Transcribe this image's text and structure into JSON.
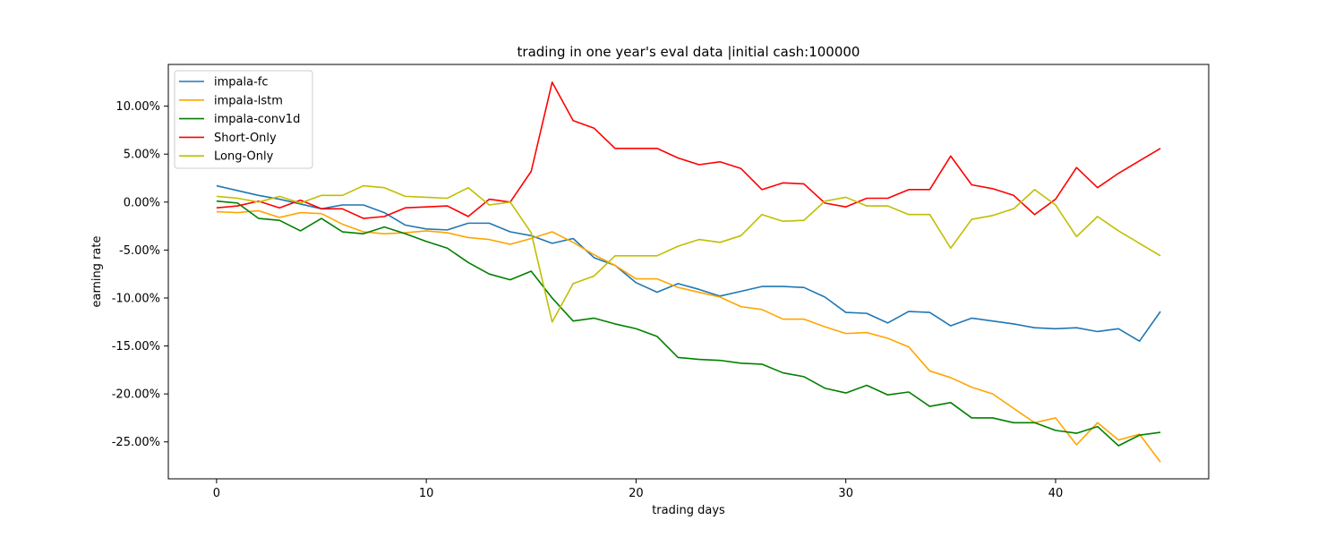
{
  "chart_data": {
    "type": "line",
    "title": "trading in one year's eval data |initial cash:100000",
    "xlabel": "trading days",
    "ylabel": "earning rate",
    "xlim": [
      -2.3,
      47.3
    ],
    "ylim": [
      -0.2885,
      0.1435
    ],
    "x_ticks": [
      0,
      10,
      20,
      30,
      40
    ],
    "x_tick_labels": [
      "0",
      "10",
      "20",
      "30",
      "40"
    ],
    "y_ticks": [
      -0.25,
      -0.2,
      -0.15,
      -0.1,
      -0.05,
      0.0,
      0.05,
      0.1
    ],
    "y_tick_labels": [
      "-25.00%",
      "-20.00%",
      "-15.00%",
      "-10.00%",
      "-5.00%",
      "0.00%",
      "5.00%",
      "10.00%"
    ],
    "grid": false,
    "legend_position": "upper-left",
    "x": [
      0,
      1,
      2,
      3,
      4,
      5,
      6,
      7,
      8,
      9,
      10,
      11,
      12,
      13,
      14,
      15,
      16,
      17,
      18,
      19,
      20,
      21,
      22,
      23,
      24,
      25,
      26,
      27,
      28,
      29,
      30,
      31,
      32,
      33,
      34,
      35,
      36,
      37,
      38,
      39,
      40,
      41,
      42,
      43,
      44,
      45
    ],
    "series": [
      {
        "name": "impala-fc",
        "color": "#1f77b4",
        "values": [
          0.017,
          0.012,
          0.007,
          0.003,
          -0.002,
          -0.007,
          -0.003,
          -0.003,
          -0.011,
          -0.024,
          -0.028,
          -0.029,
          -0.022,
          -0.022,
          -0.031,
          -0.035,
          -0.043,
          -0.038,
          -0.058,
          -0.066,
          -0.084,
          -0.094,
          -0.085,
          -0.091,
          -0.098,
          -0.093,
          -0.088,
          -0.088,
          -0.089,
          -0.099,
          -0.115,
          -0.116,
          -0.126,
          -0.114,
          -0.115,
          -0.129,
          -0.121,
          -0.124,
          -0.127,
          -0.131,
          -0.132,
          -0.131,
          -0.135,
          -0.132,
          -0.145,
          -0.114
        ]
      },
      {
        "name": "impala-lstm",
        "color": "#ffa500",
        "values": [
          -0.01,
          -0.011,
          -0.009,
          -0.016,
          -0.011,
          -0.012,
          -0.023,
          -0.031,
          -0.033,
          -0.032,
          -0.03,
          -0.032,
          -0.037,
          -0.039,
          -0.044,
          -0.038,
          -0.031,
          -0.042,
          -0.055,
          -0.066,
          -0.08,
          -0.08,
          -0.089,
          -0.094,
          -0.099,
          -0.109,
          -0.112,
          -0.122,
          -0.122,
          -0.13,
          -0.137,
          -0.136,
          -0.142,
          -0.151,
          -0.176,
          -0.183,
          -0.193,
          -0.2,
          -0.215,
          -0.23,
          -0.225,
          -0.253,
          -0.23,
          -0.248,
          -0.242,
          -0.271
        ]
      },
      {
        "name": "impala-conv1d",
        "color": "#008000",
        "values": [
          0.001,
          -0.001,
          -0.017,
          -0.019,
          -0.03,
          -0.017,
          -0.031,
          -0.033,
          -0.026,
          -0.033,
          -0.041,
          -0.048,
          -0.063,
          -0.075,
          -0.081,
          -0.072,
          -0.1,
          -0.124,
          -0.121,
          -0.127,
          -0.132,
          -0.14,
          -0.162,
          -0.164,
          -0.165,
          -0.168,
          -0.169,
          -0.178,
          -0.182,
          -0.194,
          -0.199,
          -0.191,
          -0.201,
          -0.198,
          -0.213,
          -0.209,
          -0.225,
          -0.225,
          -0.23,
          -0.23,
          -0.238,
          -0.241,
          -0.234,
          -0.254,
          -0.243,
          -0.24
        ]
      },
      {
        "name": "Short-Only",
        "color": "#ff0000",
        "values": [
          -0.006,
          -0.004,
          0.001,
          -0.006,
          0.002,
          -0.007,
          -0.007,
          -0.017,
          -0.015,
          -0.006,
          -0.005,
          -0.004,
          -0.015,
          0.003,
          0.0,
          0.032,
          0.125,
          0.085,
          0.077,
          0.056,
          0.056,
          0.056,
          0.046,
          0.039,
          0.042,
          0.035,
          0.013,
          0.02,
          0.019,
          -0.001,
          -0.005,
          0.004,
          0.004,
          0.013,
          0.013,
          0.048,
          0.018,
          0.014,
          0.007,
          -0.013,
          0.003,
          0.036,
          0.015,
          0.03,
          0.043,
          0.056
        ]
      },
      {
        "name": "Long-Only",
        "color": "#bfbf00",
        "values": [
          0.006,
          0.004,
          0.0,
          0.006,
          -0.001,
          0.007,
          0.007,
          0.017,
          0.015,
          0.006,
          0.005,
          0.004,
          0.015,
          -0.003,
          0.0,
          -0.032,
          -0.125,
          -0.085,
          -0.077,
          -0.056,
          -0.056,
          -0.056,
          -0.046,
          -0.039,
          -0.042,
          -0.035,
          -0.013,
          -0.02,
          -0.019,
          0.001,
          0.005,
          -0.004,
          -0.004,
          -0.013,
          -0.013,
          -0.048,
          -0.018,
          -0.014,
          -0.007,
          0.013,
          -0.003,
          -0.036,
          -0.015,
          -0.03,
          -0.043,
          -0.056
        ]
      }
    ]
  }
}
